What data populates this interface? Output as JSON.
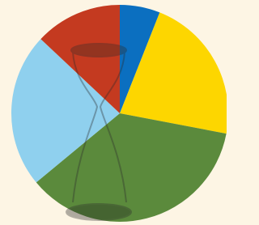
{
  "chart_data": {
    "type": "pie",
    "values": [
      6,
      22,
      36,
      23,
      13
    ],
    "colors": [
      "#0b6fc0",
      "#fdd600",
      "#5b8a3c",
      "#8fd0ee",
      "#c43a20"
    ]
  }
}
